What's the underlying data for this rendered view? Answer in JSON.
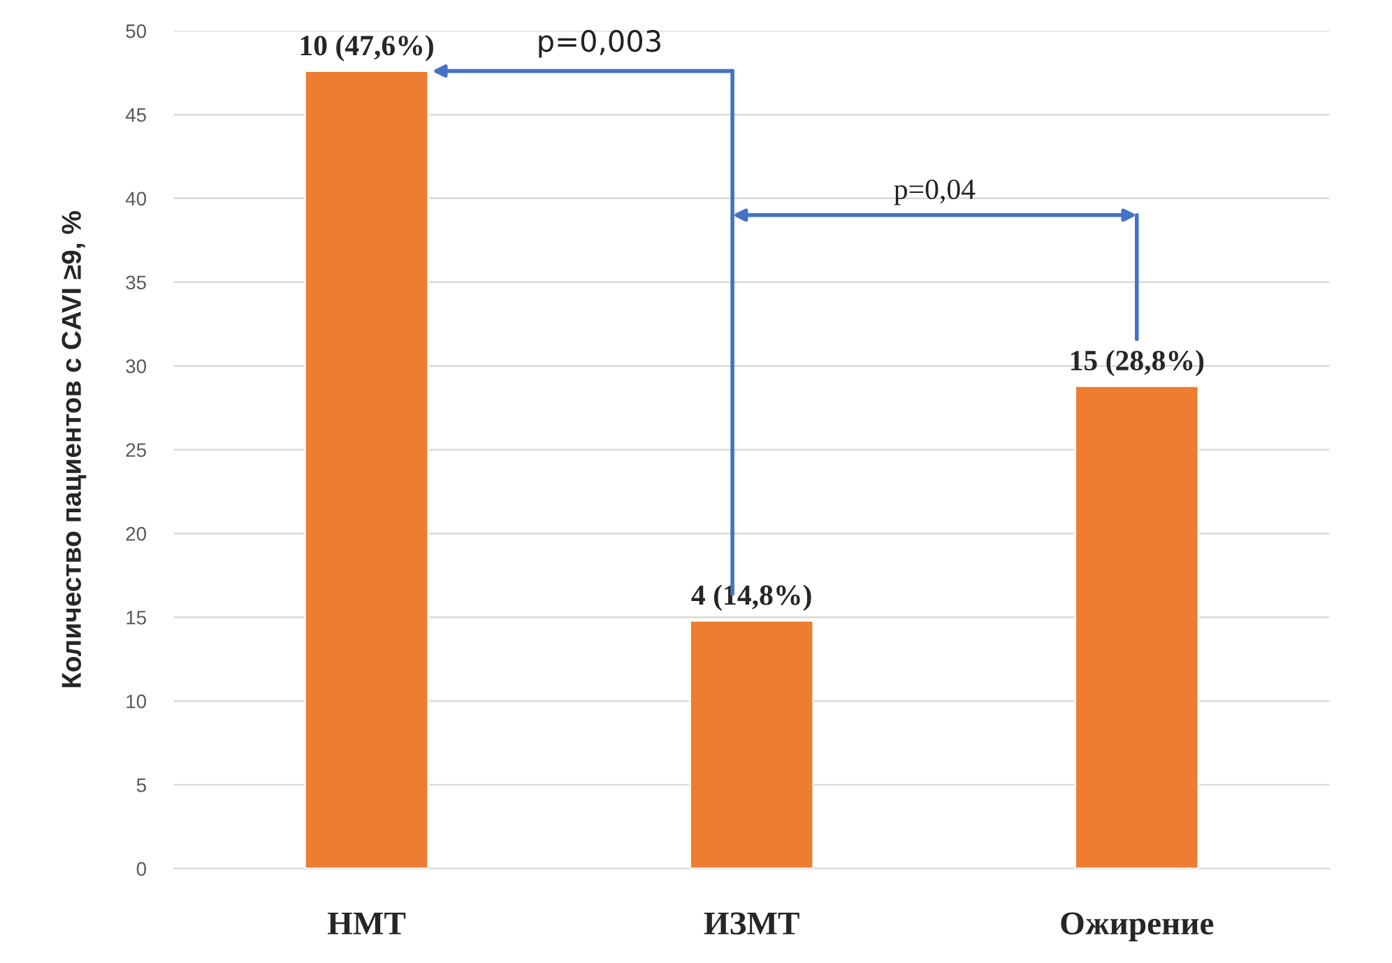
{
  "chart_data": {
    "type": "bar",
    "ylabel": "Количество пациентов с CAVI ≥9, %",
    "categories": [
      "НМТ",
      "ИЗМТ",
      "Ожирение"
    ],
    "values": [
      47.6,
      14.8,
      28.8
    ],
    "value_labels": [
      "10 (47,6%)",
      "4 (14,8%)",
      "15 (28,8%)"
    ],
    "color": "#ed7d31",
    "ylim": [
      0,
      50
    ],
    "yticks": [
      0,
      5,
      10,
      15,
      20,
      25,
      30,
      35,
      40,
      45,
      50
    ],
    "grid": "y",
    "annotations": [
      "p=0,003",
      "p=0,04"
    ]
  }
}
